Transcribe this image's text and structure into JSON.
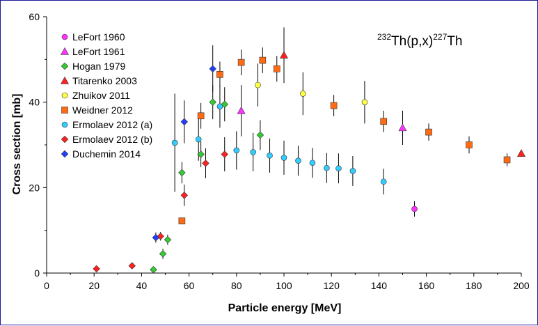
{
  "chart_data": {
    "type": "scatter",
    "title": "",
    "annotation": {
      "mass_a": "232",
      "element_a": "Th(p,x)",
      "mass_b": "227",
      "element_b": "Th"
    },
    "xlabel": "Particle energy [MeV]",
    "ylabel": "Cross section [mb]",
    "xlim": [
      0,
      200
    ],
    "ylim": [
      0,
      60
    ],
    "xticks": [
      0,
      20,
      40,
      60,
      80,
      100,
      120,
      140,
      160,
      180,
      200
    ],
    "yticks": [
      0,
      20,
      40,
      60
    ],
    "legend_position": "top-left",
    "series": [
      {
        "name": "LeFort 1960",
        "marker": "circle",
        "color": "#ff33ff",
        "points": [
          {
            "x": 155,
            "y": 15.0,
            "err": 1.8
          }
        ]
      },
      {
        "name": "LeFort 1961",
        "marker": "triangle",
        "color": "#ff33ff",
        "points": [
          {
            "x": 82,
            "y": 38.0,
            "err": 6.0
          },
          {
            "x": 150,
            "y": 34.0,
            "err": 4.0
          }
        ]
      },
      {
        "name": "Hogan 1979",
        "marker": "diamond",
        "color": "#33cc33",
        "points": [
          {
            "x": 45,
            "y": 0.8,
            "err": 0.2
          },
          {
            "x": 49,
            "y": 4.5,
            "err": 1.2
          },
          {
            "x": 51,
            "y": 7.8,
            "err": 1.2
          },
          {
            "x": 57,
            "y": 23.5,
            "err": 2.5
          },
          {
            "x": 65,
            "y": 27.8,
            "err": 3.0
          },
          {
            "x": 70,
            "y": 40.0,
            "err": 4.0
          },
          {
            "x": 75,
            "y": 39.5,
            "err": 4.0
          },
          {
            "x": 90,
            "y": 32.3,
            "err": 3.5
          }
        ]
      },
      {
        "name": "Titarenko 2003",
        "marker": "triangle",
        "color": "#ff2020",
        "points": [
          {
            "x": 100,
            "y": 51.0,
            "err": 6.5
          },
          {
            "x": 200,
            "y": 28.0,
            "err": 0.4
          }
        ]
      },
      {
        "name": "Zhuikov 2011",
        "marker": "circle",
        "color": "#ffff44",
        "points": [
          {
            "x": 89,
            "y": 44.0,
            "err": 5.0
          },
          {
            "x": 108,
            "y": 42.0,
            "err": 5.0
          },
          {
            "x": 134,
            "y": 40.0,
            "err": 5.0
          }
        ]
      },
      {
        "name": "Weidner 2012",
        "marker": "square",
        "color": "#ff6a13",
        "points": [
          {
            "x": 57,
            "y": 12.2,
            "err": 0.5
          },
          {
            "x": 65,
            "y": 36.8,
            "err": 3.0
          },
          {
            "x": 73,
            "y": 46.5,
            "err": 3.0
          },
          {
            "x": 82,
            "y": 49.3,
            "err": 3.0
          },
          {
            "x": 91,
            "y": 49.8,
            "err": 3.0
          },
          {
            "x": 97,
            "y": 47.8,
            "err": 3.0
          },
          {
            "x": 121,
            "y": 39.2,
            "err": 2.5
          },
          {
            "x": 142,
            "y": 35.5,
            "err": 2.5
          },
          {
            "x": 161,
            "y": 33.0,
            "err": 2.0
          },
          {
            "x": 178,
            "y": 30.0,
            "err": 2.0
          },
          {
            "x": 194,
            "y": 26.5,
            "err": 1.5
          }
        ]
      },
      {
        "name": "Ermolaev 2012 (a)",
        "marker": "circle",
        "color": "#33ccff",
        "points": [
          {
            "x": 54,
            "y": 30.5,
            "err": 11.5
          },
          {
            "x": 64,
            "y": 31.3,
            "err": 5.0
          },
          {
            "x": 73,
            "y": 39.0,
            "err": 5.0
          },
          {
            "x": 80,
            "y": 28.7,
            "err": 4.5
          },
          {
            "x": 87,
            "y": 28.3,
            "err": 4.5
          },
          {
            "x": 94,
            "y": 27.5,
            "err": 4.0
          },
          {
            "x": 100,
            "y": 27.0,
            "err": 4.0
          },
          {
            "x": 106,
            "y": 26.3,
            "err": 3.5
          },
          {
            "x": 112,
            "y": 25.8,
            "err": 3.5
          },
          {
            "x": 118,
            "y": 24.6,
            "err": 3.5
          },
          {
            "x": 123,
            "y": 24.5,
            "err": 3.5
          },
          {
            "x": 129,
            "y": 23.9,
            "err": 3.5
          },
          {
            "x": 142,
            "y": 21.4,
            "err": 3.0
          }
        ]
      },
      {
        "name": "Ermolaev 2012 (b)",
        "marker": "diamond",
        "color": "#ff2020",
        "points": [
          {
            "x": 21,
            "y": 1.0,
            "err": 0.2
          },
          {
            "x": 36,
            "y": 1.7,
            "err": 0.2
          },
          {
            "x": 48,
            "y": 8.6,
            "err": 1.0
          },
          {
            "x": 58,
            "y": 18.2,
            "err": 2.5
          },
          {
            "x": 67,
            "y": 25.7,
            "err": 3.5
          },
          {
            "x": 75,
            "y": 27.8,
            "err": 4.0
          }
        ]
      },
      {
        "name": "Duchemin 2014",
        "marker": "diamond",
        "color": "#1f3fff",
        "points": [
          {
            "x": 46,
            "y": 8.3,
            "err": 1.2
          },
          {
            "x": 58,
            "y": 35.4,
            "err": 5.0
          },
          {
            "x": 70,
            "y": 47.8,
            "err": 5.5
          }
        ]
      }
    ]
  }
}
